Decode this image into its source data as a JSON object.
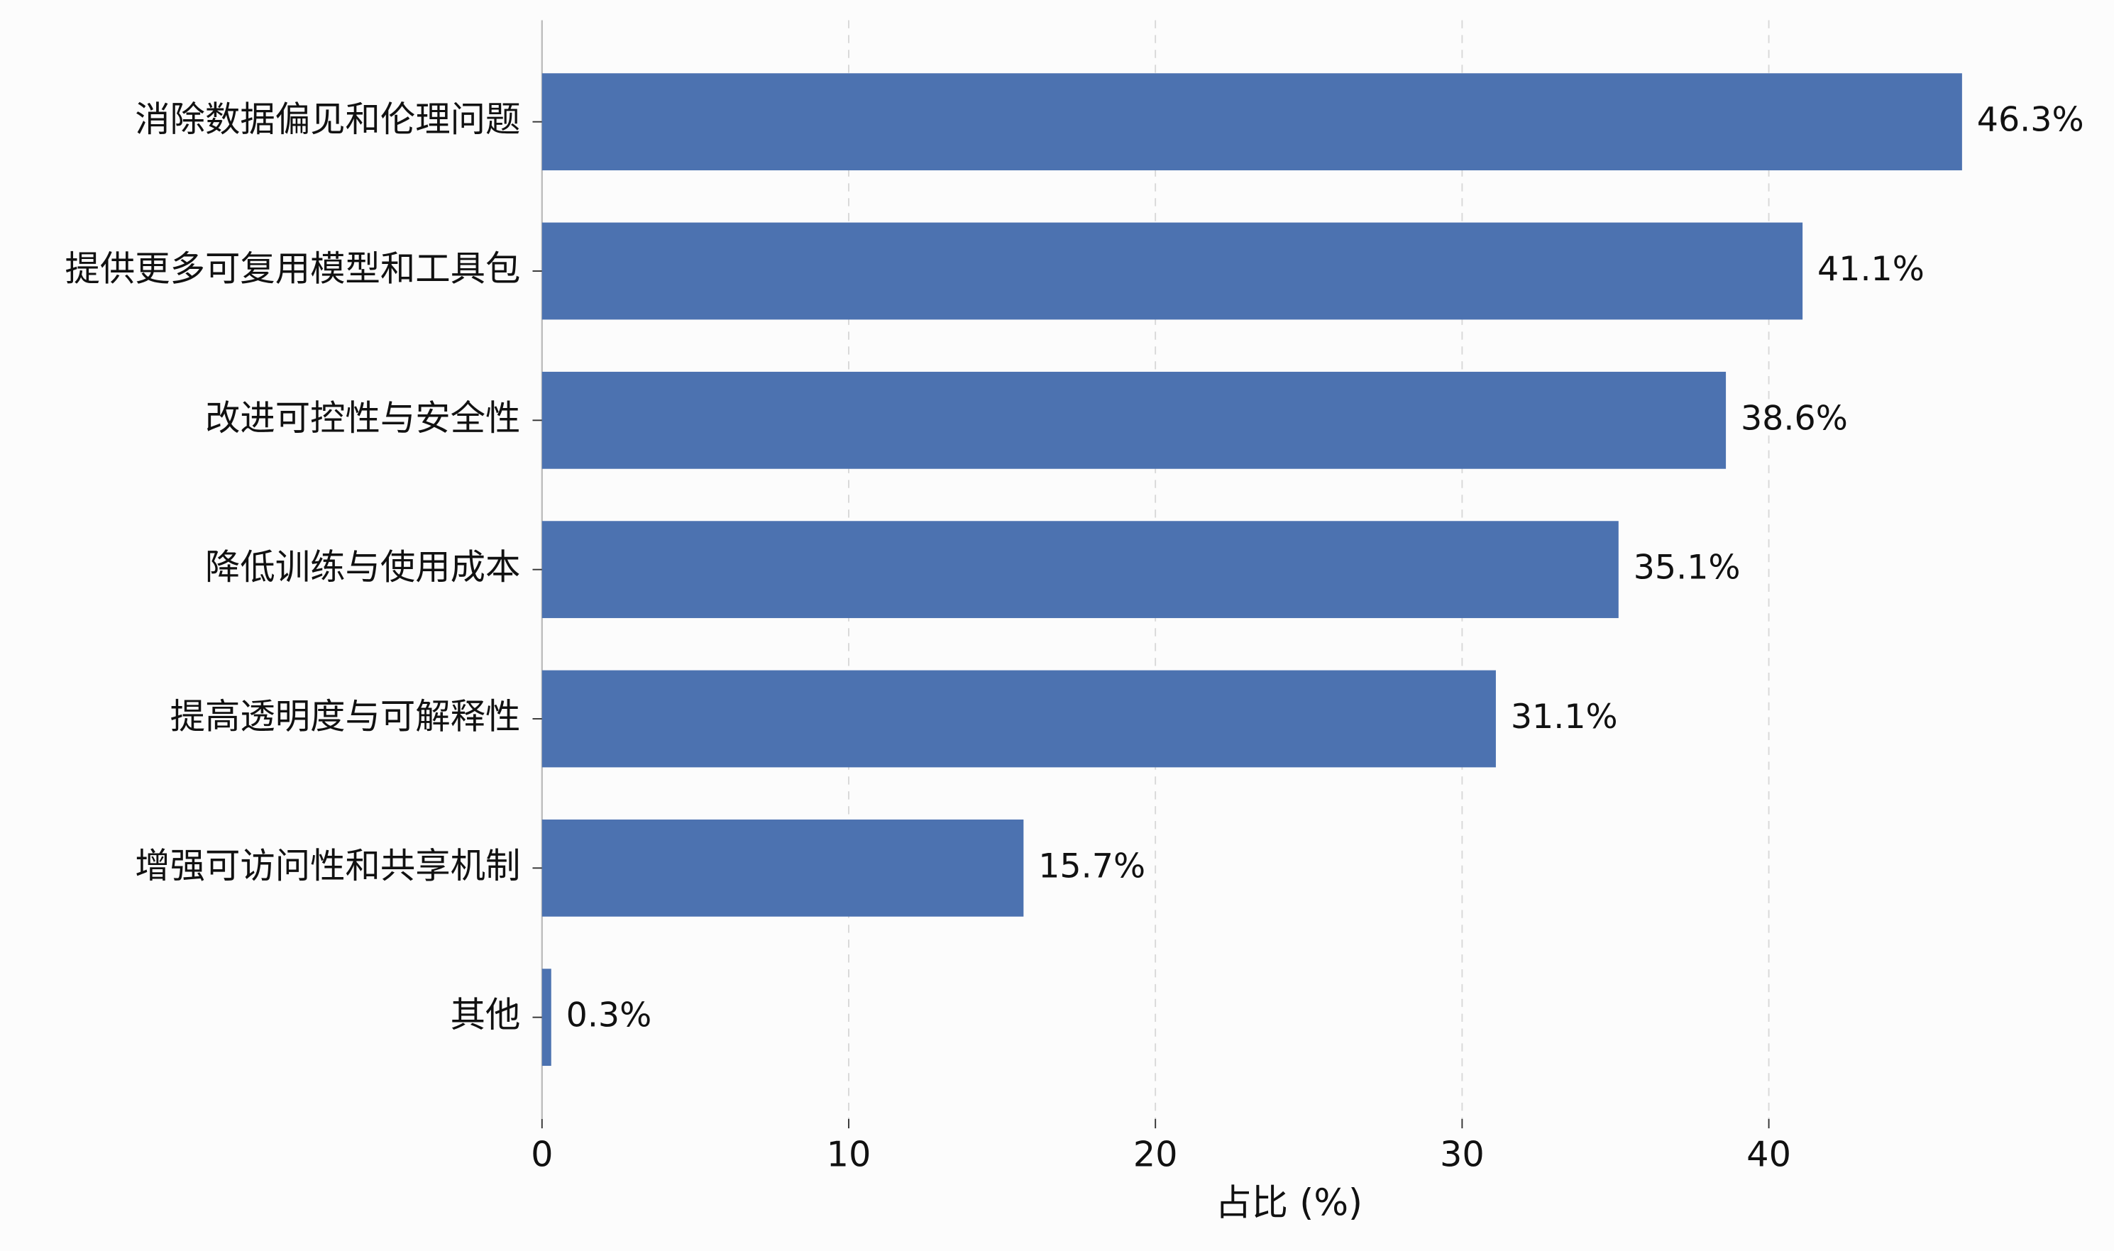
{
  "chart_data": {
    "type": "bar",
    "orientation": "horizontal",
    "categories": [
      "消除数据偏见和伦理问题",
      "提供更多可复用模型和工具包",
      "改进可控性与安全性",
      "降低训练与使用成本",
      "提高透明度与可解释性",
      "增强可访问性和共享机制",
      "其他"
    ],
    "values": [
      46.3,
      41.1,
      38.6,
      35.1,
      31.1,
      15.7,
      0.3
    ],
    "value_labels": [
      "46.3%",
      "41.1%",
      "38.6%",
      "35.1%",
      "31.1%",
      "15.7%",
      "0.3%"
    ],
    "color": "#4c72b0",
    "xlabel": "占比 (%)",
    "xlim": [
      0,
      48.6
    ],
    "xticks": [
      0,
      10,
      20,
      30,
      40
    ],
    "grid": true
  }
}
